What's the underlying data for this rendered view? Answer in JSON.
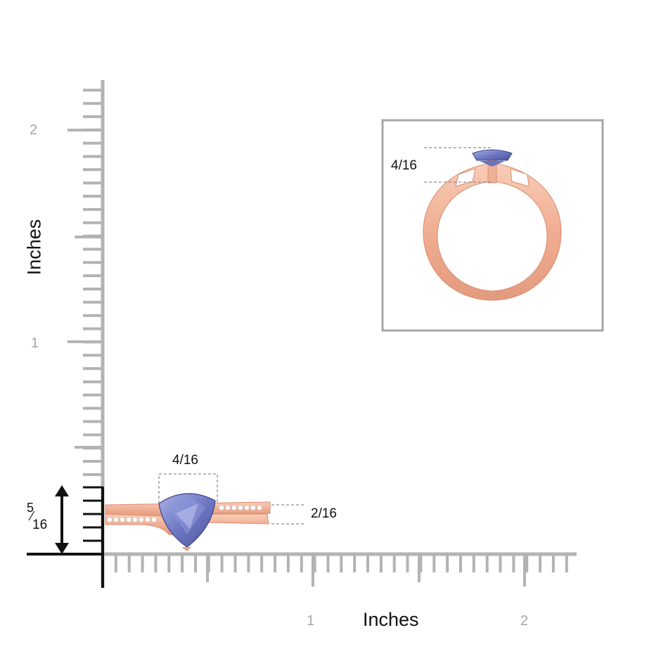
{
  "vertical_axis": {
    "label": "Inches",
    "ticks": [
      "1",
      "2"
    ]
  },
  "horizontal_axis": {
    "label": "Inches",
    "ticks": [
      "1",
      "2"
    ]
  },
  "dimensions": {
    "height_fraction_num": "5",
    "height_fraction_den": "16",
    "stone_width": "4/16",
    "band_width": "2/16",
    "side_view_height": "4/16"
  },
  "colors": {
    "axis": "#111111",
    "ruler_ticks": "#b3b3b3",
    "rose_gold": "#f2b59c",
    "rose_gold_dark": "#de9478",
    "tanzanite": "#7f88cf",
    "tanzanite_dark": "#4f579e",
    "inset_border": "#a6a6a6",
    "dashed_guide": "#8c8c8c"
  }
}
